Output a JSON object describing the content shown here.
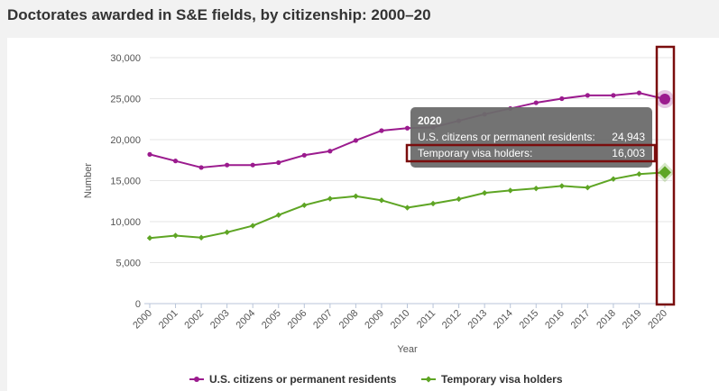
{
  "page": {
    "title": "Doctorates awarded in S&E fields, by citizenship: 2000–20"
  },
  "chart_data": {
    "type": "line",
    "x": [
      2000,
      2001,
      2002,
      2003,
      2004,
      2005,
      2006,
      2007,
      2008,
      2009,
      2010,
      2011,
      2012,
      2013,
      2014,
      2015,
      2016,
      2017,
      2018,
      2019,
      2020
    ],
    "xlabel": "Year",
    "ylabel": "Number",
    "ylim": [
      0,
      30000
    ],
    "yticks": [
      0,
      5000,
      10000,
      15000,
      20000,
      25000,
      30000
    ],
    "ytick_labels": [
      "0",
      "5,000",
      "10,000",
      "15,000",
      "20,000",
      "25,000",
      "30,000"
    ],
    "grid": true,
    "legend_position": "bottom",
    "series": [
      {
        "name": "U.S. citizens or permanent residents",
        "color": "#9b1b8e",
        "marker": "circle",
        "values": [
          18200,
          17400,
          16600,
          16900,
          16900,
          17200,
          18100,
          18600,
          19900,
          21100,
          21400,
          21500,
          22300,
          23100,
          23800,
          24500,
          25000,
          25400,
          25400,
          25700,
          24943
        ]
      },
      {
        "name": "Temporary visa holders",
        "color": "#5ea524",
        "marker": "diamond",
        "values": [
          8000,
          8300,
          8050,
          8700,
          9500,
          10800,
          12000,
          12800,
          13100,
          12600,
          11700,
          12200,
          12750,
          13500,
          13800,
          14050,
          14350,
          14150,
          15200,
          15800,
          16003
        ]
      }
    ],
    "tooltip": {
      "title": "2020",
      "rows": [
        {
          "label": "U.S. citizens or permanent residents:",
          "value": "24,943"
        },
        {
          "label": "Temporary visa holders:",
          "value": "16,003"
        }
      ]
    },
    "highlight_year": 2020
  }
}
